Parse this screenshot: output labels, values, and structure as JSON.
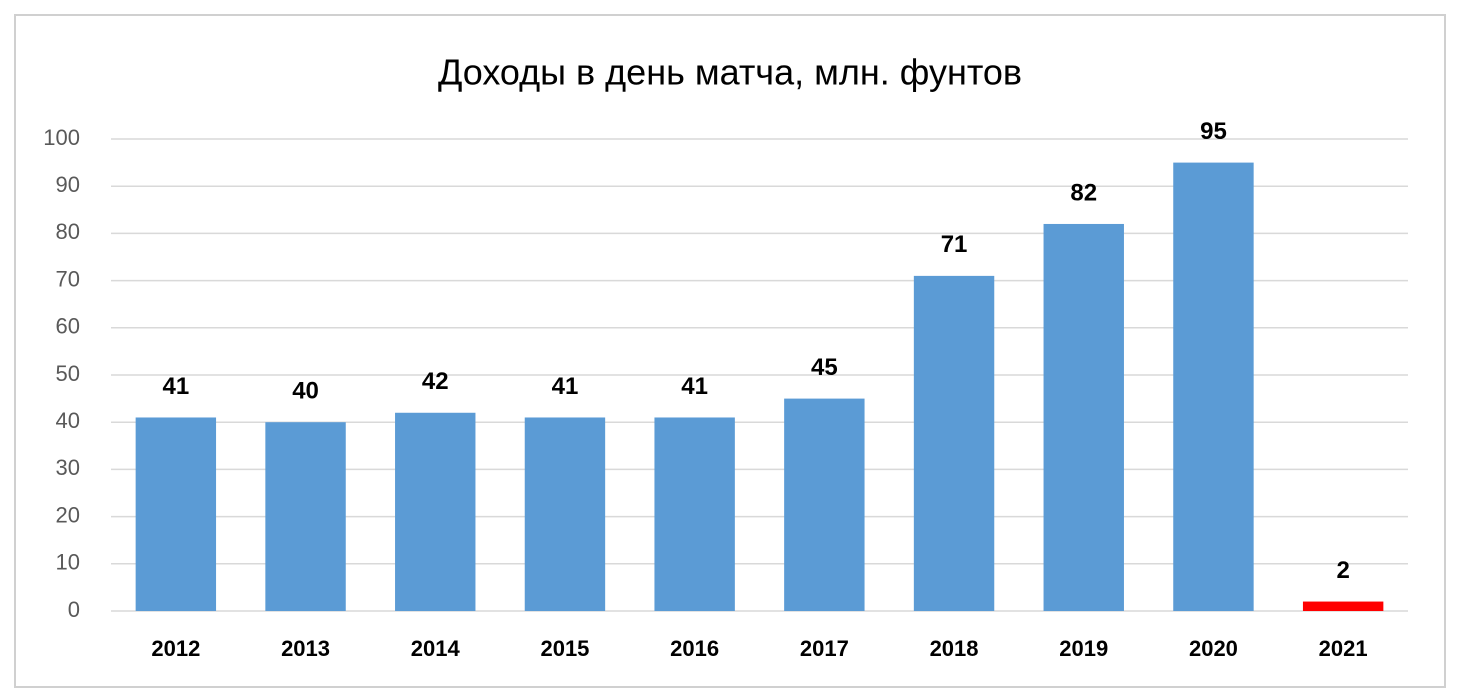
{
  "chart_data": {
    "type": "bar",
    "title": "Доходы в день матча, млн. фунтов",
    "categories": [
      "2012",
      "2013",
      "2014",
      "2015",
      "2016",
      "2017",
      "2018",
      "2019",
      "2020",
      "2021"
    ],
    "values": [
      41,
      40,
      42,
      41,
      41,
      45,
      71,
      82,
      95,
      2
    ],
    "colors": [
      "#5b9bd5",
      "#5b9bd5",
      "#5b9bd5",
      "#5b9bd5",
      "#5b9bd5",
      "#5b9bd5",
      "#5b9bd5",
      "#5b9bd5",
      "#5b9bd5",
      "#ff0000"
    ],
    "ylim": [
      0,
      100
    ],
    "yticks": [
      0,
      10,
      20,
      30,
      40,
      50,
      60,
      70,
      80,
      90,
      100
    ],
    "grid": true
  }
}
